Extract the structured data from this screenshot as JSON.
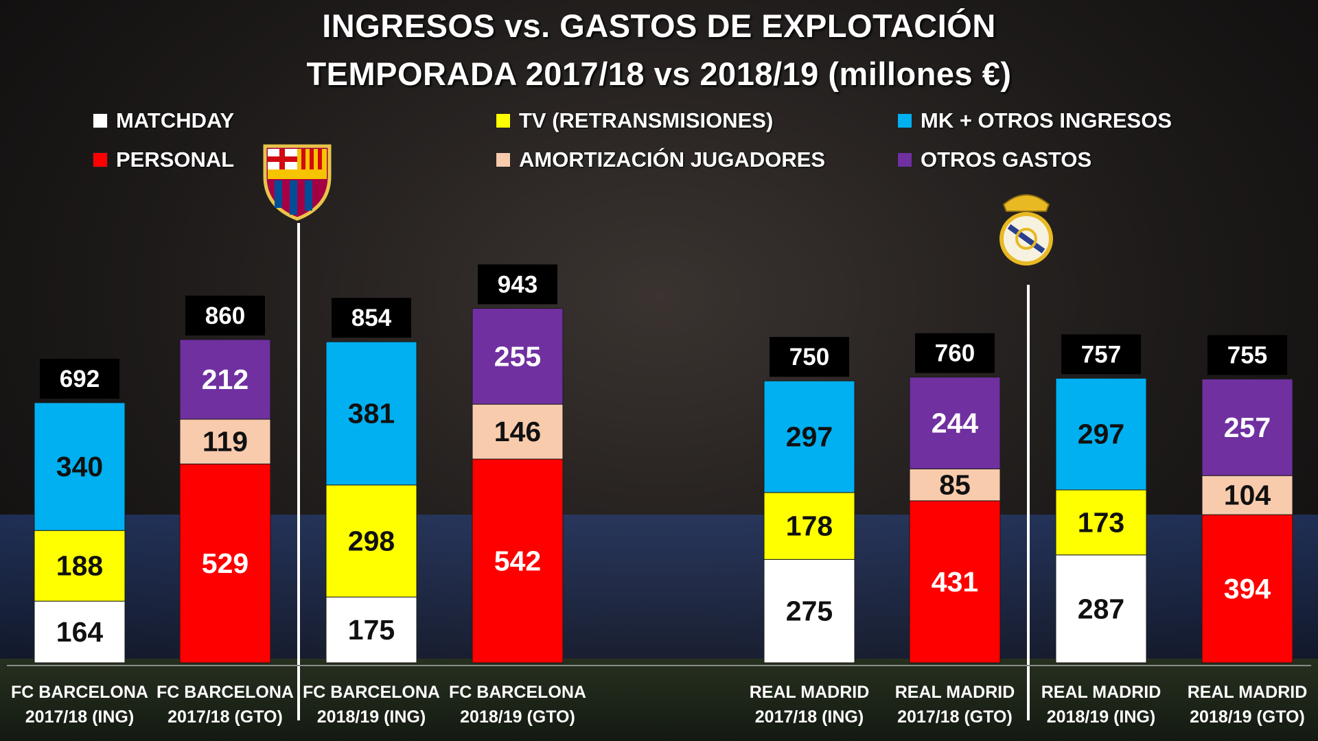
{
  "chart_data": {
    "type": "bar",
    "stacked": true,
    "title": "INGRESOS vs. GASTOS DE EXPLOTACIÓN",
    "subtitle": "TEMPORADA 2017/18 vs 2018/19 (millones €)",
    "legend": [
      {
        "name": "MATCHDAY",
        "color": "#ffffff"
      },
      {
        "name": "TV (RETRANSMISIONES)",
        "color": "#ffff00"
      },
      {
        "name": "MK + OTROS INGRESOS",
        "color": "#00b0f0"
      },
      {
        "name": "PERSONAL",
        "color": "#ff0000"
      },
      {
        "name": "AMORTIZACIÓN JUGADORES",
        "color": "#f8cbad"
      },
      {
        "name": "OTROS GASTOS",
        "color": "#7030a0"
      }
    ],
    "categories": [
      [
        "FC BARCELONA",
        "2017/18 (ING)"
      ],
      [
        "FC BARCELONA",
        "2017/18 (GTO)"
      ],
      [
        "FC BARCELONA",
        "2018/19 (ING)"
      ],
      [
        "FC BARCELONA",
        "2018/19 (GTO)"
      ],
      [
        "REAL MADRID",
        "2017/18 (ING)"
      ],
      [
        "REAL MADRID",
        "2017/18 (GTO)"
      ],
      [
        "REAL MADRID",
        "2018/19 (ING)"
      ],
      [
        "REAL MADRID",
        "2018/19 (GTO)"
      ]
    ],
    "bars": [
      {
        "total": 692,
        "segments": [
          {
            "series": "MATCHDAY",
            "value": 164
          },
          {
            "series": "TV (RETRANSMISIONES)",
            "value": 188
          },
          {
            "series": "MK + OTROS INGRESOS",
            "value": 340
          }
        ]
      },
      {
        "total": 860,
        "segments": [
          {
            "series": "PERSONAL",
            "value": 529
          },
          {
            "series": "AMORTIZACIÓN JUGADORES",
            "value": 119
          },
          {
            "series": "OTROS GASTOS",
            "value": 212
          }
        ]
      },
      {
        "total": 854,
        "segments": [
          {
            "series": "MATCHDAY",
            "value": 175
          },
          {
            "series": "TV (RETRANSMISIONES)",
            "value": 298
          },
          {
            "series": "MK + OTROS INGRESOS",
            "value": 381
          }
        ]
      },
      {
        "total": 943,
        "segments": [
          {
            "series": "PERSONAL",
            "value": 542
          },
          {
            "series": "AMORTIZACIÓN JUGADORES",
            "value": 146
          },
          {
            "series": "OTROS GASTOS",
            "value": 255
          }
        ]
      },
      {
        "total": 750,
        "segments": [
          {
            "series": "MATCHDAY",
            "value": 275
          },
          {
            "series": "TV (RETRANSMISIONES)",
            "value": 178
          },
          {
            "series": "MK + OTROS INGRESOS",
            "value": 297
          }
        ]
      },
      {
        "total": 760,
        "segments": [
          {
            "series": "PERSONAL",
            "value": 431
          },
          {
            "series": "AMORTIZACIÓN JUGADORES",
            "value": 85
          },
          {
            "series": "OTROS GASTOS",
            "value": 244
          }
        ]
      },
      {
        "total": 757,
        "segments": [
          {
            "series": "MATCHDAY",
            "value": 287
          },
          {
            "series": "TV (RETRANSMISIONES)",
            "value": 173
          },
          {
            "series": "MK + OTROS INGRESOS",
            "value": 297
          }
        ]
      },
      {
        "total": 755,
        "segments": [
          {
            "series": "PERSONAL",
            "value": 394
          },
          {
            "series": "AMORTIZACIÓN JUGADORES",
            "value": 104
          },
          {
            "series": "OTROS GASTOS",
            "value": 257
          }
        ]
      }
    ],
    "label_text_colors": {
      "MATCHDAY": "#111111",
      "TV (RETRANSMISIONES)": "#111111",
      "MK + OTROS INGRESOS": "#111111",
      "PERSONAL": "#ffffff",
      "AMORTIZACIÓN JUGADORES": "#111111",
      "OTROS GASTOS": "#ffffff"
    },
    "grid": false
  },
  "logos": {
    "barcelona": "FCB crest",
    "real_madrid": "Real Madrid crest"
  }
}
